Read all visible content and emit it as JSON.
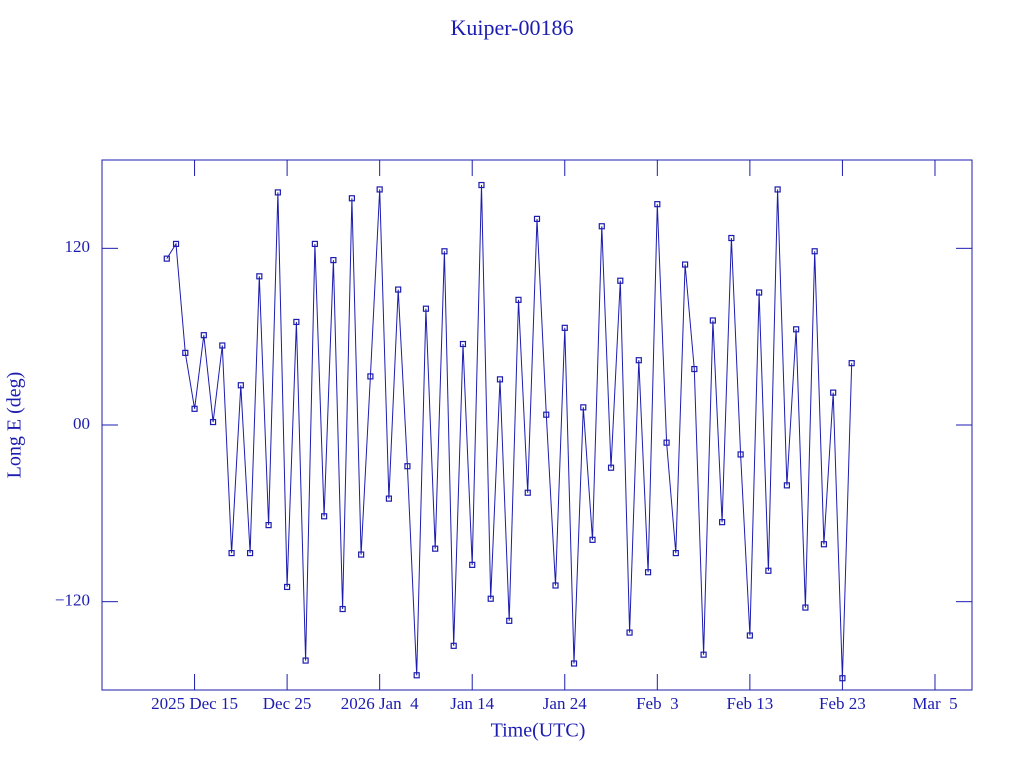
{
  "chart_data": {
    "type": "line",
    "title": "Kuiper-00186",
    "x_label": "Time(UTC)",
    "y_label": "Long E (deg)",
    "x": [
      "2025-12-12",
      "2025-12-13",
      "2025-12-14",
      "2025-12-15",
      "2025-12-16",
      "2025-12-17",
      "2025-12-18",
      "2025-12-19",
      "2025-12-20",
      "2025-12-21",
      "2025-12-22",
      "2025-12-23",
      "2025-12-24",
      "2025-12-25",
      "2025-12-26",
      "2025-12-27",
      "2025-12-28",
      "2025-12-29",
      "2025-12-30",
      "2025-12-31",
      "2026-01-01",
      "2026-01-02",
      "2026-01-03",
      "2026-01-04",
      "2026-01-05",
      "2026-01-06",
      "2026-01-07",
      "2026-01-08",
      "2026-01-09",
      "2026-01-10",
      "2026-01-11",
      "2026-01-12",
      "2026-01-13",
      "2026-01-14",
      "2026-01-15",
      "2026-01-16",
      "2026-01-17",
      "2026-01-18",
      "2026-01-19",
      "2026-01-20",
      "2026-01-21",
      "2026-01-22",
      "2026-01-23",
      "2026-01-24",
      "2026-01-25",
      "2026-01-26",
      "2026-01-27",
      "2026-01-28",
      "2026-01-29",
      "2026-01-30",
      "2026-01-31",
      "2026-02-01",
      "2026-02-02",
      "2026-02-03",
      "2026-02-04",
      "2026-02-05",
      "2026-02-06",
      "2026-02-07",
      "2026-02-08",
      "2026-02-09",
      "2026-02-10",
      "2026-02-11",
      "2026-02-12",
      "2026-02-13",
      "2026-02-14",
      "2026-02-15",
      "2026-02-16",
      "2026-02-17",
      "2026-02-18",
      "2026-02-19",
      "2026-02-20",
      "2026-02-21",
      "2026-02-22",
      "2026-02-23",
      "2026-02-24"
    ],
    "series": [
      {
        "name": "Kuiper-00186",
        "color": "#1c1cb0",
        "values": [
          113,
          123,
          49,
          11,
          61,
          2,
          54,
          -87,
          27,
          -87,
          101,
          -68,
          158,
          -110,
          70,
          -160,
          123,
          -62,
          112,
          -125,
          154,
          -88,
          33,
          160,
          -50,
          92,
          -28,
          -170,
          79,
          -84,
          118,
          -150,
          55,
          -95,
          163,
          -118,
          31,
          -133,
          85,
          -46,
          140,
          7,
          -109,
          66,
          -162,
          12,
          -78,
          135,
          -29,
          98,
          -141,
          44,
          -100,
          150,
          -12,
          -87,
          109,
          38,
          -156,
          71,
          -66,
          127,
          -20,
          -143,
          90,
          -99,
          160,
          -41,
          65,
          -124,
          118,
          -81,
          22,
          -172,
          42
        ]
      }
    ],
    "xlim": [
      "2025-12-05",
      "2026-03-09"
    ],
    "xticks": [
      {
        "value": "2025-12-15",
        "label": "2025 Dec 15"
      },
      {
        "value": "2025-12-25",
        "label": "Dec 25"
      },
      {
        "value": "2026-01-04",
        "label": "2026 Jan  4"
      },
      {
        "value": "2026-01-14",
        "label": "Jan 14"
      },
      {
        "value": "2026-01-24",
        "label": "Jan 24"
      },
      {
        "value": "2026-02-03",
        "label": "Feb  3"
      },
      {
        "value": "2026-02-13",
        "label": "Feb 13"
      },
      {
        "value": "2026-02-23",
        "label": "Feb 23"
      },
      {
        "value": "2026-03-05",
        "label": "Mar  5"
      }
    ],
    "ylim": [
      -180,
      180
    ],
    "yticks": [
      {
        "value": -120,
        "label": "−120"
      },
      {
        "value": 0,
        "label": "00"
      },
      120
    ]
  }
}
